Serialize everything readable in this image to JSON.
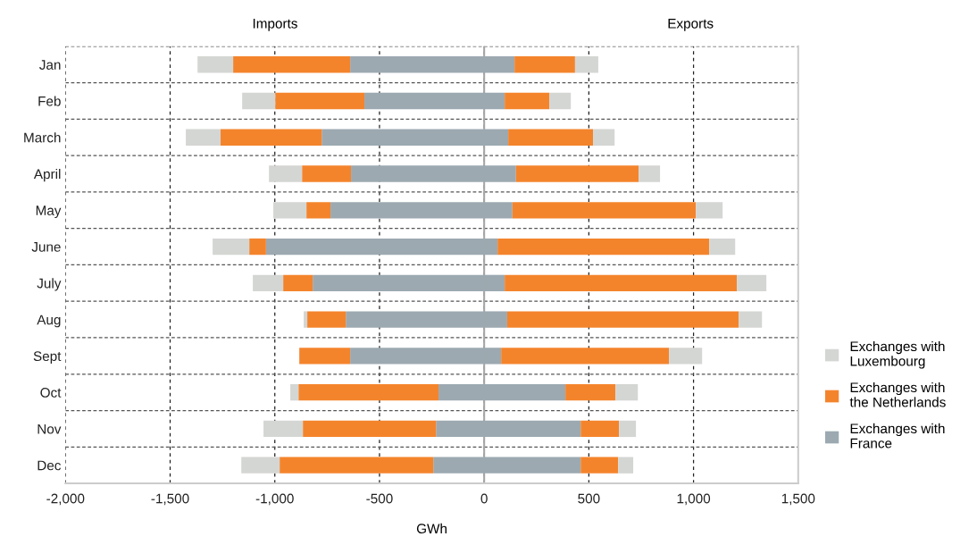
{
  "chart_data": {
    "type": "bar",
    "orientation": "horizontal",
    "stacked": true,
    "categories": [
      "Jan",
      "Feb",
      "March",
      "April",
      "May",
      "June",
      "July",
      "Aug",
      "Sept",
      "Oct",
      "Nov",
      "Dec"
    ],
    "series": [
      {
        "name": "Exchanges with\nFrance",
        "color": "#9ca9b1",
        "values": [
          -640,
          -572,
          -776,
          -636,
          -734,
          -1042,
          -819,
          -661,
          -640,
          -218,
          -230,
          -243
        ]
      },
      {
        "color": "#9ca9b1",
        "values": [
          145,
          98,
          115,
          152,
          135,
          64,
          98,
          110,
          81,
          388,
          461,
          461
        ]
      },
      {
        "name": "Exchanges with\nthe Netherlands",
        "color": "#f4842c",
        "values": [
          -559,
          -426,
          -483,
          -234,
          -115,
          -80,
          -141,
          -184,
          -243,
          -669,
          -636,
          -734
        ]
      },
      {
        "color": "#f4842c",
        "values": [
          289,
          213,
          405,
          586,
          876,
          1011,
          1109,
          1106,
          802,
          239,
          183,
          179
        ]
      },
      {
        "name": "Exchanges with\nLuxembourg",
        "color": "#d4d6d3",
        "values": [
          -170,
          -158,
          -166,
          -158,
          -158,
          -175,
          -145,
          -17,
          0,
          -39,
          -188,
          -183
        ]
      },
      {
        "color": "#d4d6d3",
        "values": [
          111,
          103,
          103,
          102,
          128,
          124,
          141,
          111,
          158,
          107,
          81,
          72
        ]
      }
    ],
    "xlabel": "GWh",
    "annotations": [
      "Imports",
      "Exports"
    ],
    "xlim": [
      -2000,
      1500
    ],
    "xticks": [
      {
        "value": -2000,
        "label": "-2,000"
      },
      {
        "value": -1500,
        "label": "-1,500"
      },
      {
        "value": -1000,
        "label": "-1,000"
      },
      -500,
      0,
      500,
      {
        "value": 1000,
        "label": "1,000"
      },
      {
        "value": 1500,
        "label": "1,500"
      }
    ],
    "ref_lines": [
      {
        "axis": "x",
        "value": 0,
        "color": "#a6a6a6"
      }
    ],
    "grid": true,
    "legend": "right"
  }
}
